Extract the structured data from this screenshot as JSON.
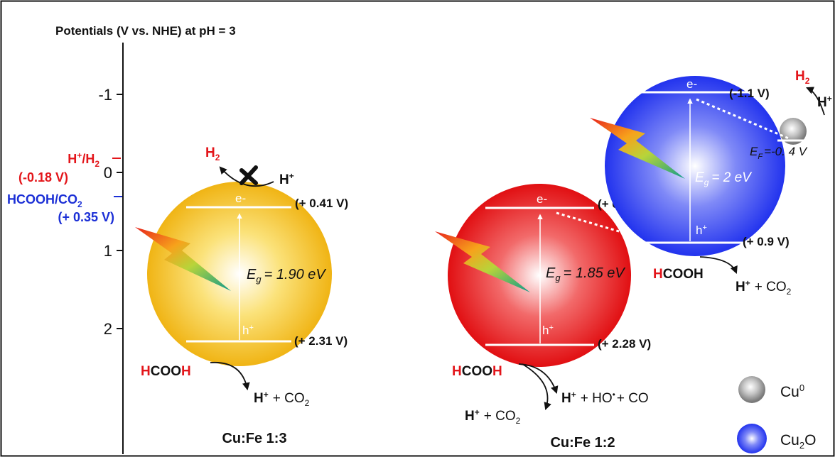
{
  "axis": {
    "title": "Potentials (V vs. NHE) at pH = 3",
    "ticks": [
      "-1",
      "0",
      "1",
      "2"
    ]
  },
  "reference_levels": {
    "h2": {
      "couple_pre": "H",
      "couple_sup": "+",
      "couple_mid": "/H",
      "couple_sub": "2",
      "potential": "(-0.18 V)"
    },
    "hcooh": {
      "couple_pre": "HCOOH/CO",
      "couple_sub": "2",
      "potential": "(+ 0.35 V)"
    }
  },
  "panels": [
    {
      "label": "Cu:Fe 1:3",
      "electron": "e-",
      "hole": "h",
      "hole_sup": "+",
      "cb_potential": "(+ 0.41 V)",
      "vb_potential": "(+ 2.31 V)",
      "eg_symbol": "E",
      "eg_sub": "g",
      "eg_value": "= 1.90 eV",
      "top_reaction": {
        "product": "H",
        "product_sub": "2",
        "reactant": "H",
        "reactant_sup": "+"
      },
      "bottom_reaction": {
        "reactant_h1": "H",
        "reactant_mid": "COO",
        "reactant_h2": "H",
        "product_1": "H",
        "product_1_sup": "+",
        "plus_co2": "+ CO",
        "co2_sub": "2"
      }
    },
    {
      "label": "Cu:Fe 1:2",
      "electron": "e-",
      "hole": "h",
      "hole_sup": "+",
      "cb_potential": "(+ 0.43 V)",
      "vb_potential": "(+ 2.28 V)",
      "eg_symbol": "E",
      "eg_sub": "g",
      "eg_value": "= 1.85 eV",
      "bottom_reaction": {
        "reactant_h1": "H",
        "reactant_mid": "COO",
        "reactant_h2": "H",
        "product_a": "H",
        "product_a_sup": "+",
        "product_a_rest": "+ HO",
        "radical_dot": "•",
        "product_a_end": "+ CO",
        "product_b": "H",
        "product_b_sup": "+",
        "product_b_rest": "+ CO",
        "product_b_sub": "2"
      }
    }
  ],
  "cu2o_sphere": {
    "electron": "e-",
    "hole": "h",
    "hole_sup": "+",
    "cb_potential": "(-1.1 V)",
    "vb_potential": "(+ 0.9 V)",
    "eg_symbol": "E",
    "eg_sub": "g",
    "eg_value": "= 2 eV",
    "ef_symbol": "E",
    "ef_sub": "F",
    "ef_value": "=-0. 4 V",
    "h2_product": "H",
    "h2_sub": "2",
    "h_plus": "H",
    "h_plus_sup": "+",
    "oxidation": {
      "reactant_h1": "H",
      "reactant_rest": "COOH",
      "product": "H",
      "product_sup": "+",
      "plus_co2": "+ CO",
      "co2_sub": "2"
    }
  },
  "legend": [
    {
      "label": "Cu",
      "sup": "0",
      "color": "#9a9a9a"
    },
    {
      "label": "Cu",
      "sub": "2",
      "label_end": "O",
      "color": "#2a3df0"
    }
  ],
  "colors": {
    "panel1_sphere": "#f2b81c",
    "panel2_sphere": "#e8191b",
    "cu2o_sphere": "#2b3cf0",
    "cu0_particle": "#8a8a8a",
    "red_text": "#e3151a",
    "blue_text": "#1b2fd6"
  }
}
